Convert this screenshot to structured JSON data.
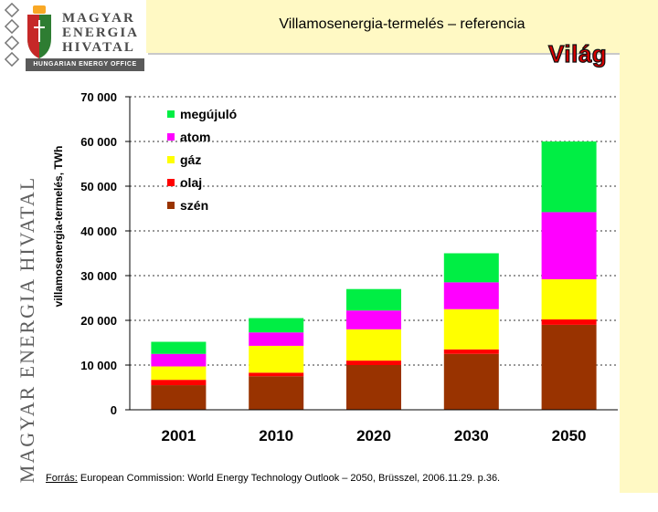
{
  "slide": {
    "title": "Villamosenergia-termelés – referencia",
    "badge": "Világ",
    "brand_vertical": "MAGYAR ENERGIA HIVATAL",
    "logo_lines": [
      "MAGYAR",
      "ENERGIA",
      "HIVATAL"
    ],
    "logo_subtitle": "HUNGARIAN ENERGY OFFICE",
    "source_label": "Forrás:",
    "source_text": " European Commission: World Energy Technology Outlook – 2050, Brüsszel, 2006.11.29. p.36."
  },
  "colors": {
    "band": "#fff9c4",
    "badge": "#d50000",
    "szen": "#993300",
    "olaj": "#ff0000",
    "gaz": "#ffff00",
    "atom": "#ff00ff",
    "megujulo": "#00ee44"
  },
  "chart_data": {
    "type": "bar",
    "stacked": true,
    "ylabel": "villamosenergia-termelés, TWh",
    "ylim": [
      0,
      70000
    ],
    "yticks": [
      "0",
      "10 000",
      "20 000",
      "30 000",
      "40 000",
      "50 000",
      "60 000",
      "70 000"
    ],
    "grid": true,
    "legend_position": "top-left",
    "categories": [
      "2001",
      "2010",
      "2020",
      "2030",
      "2050"
    ],
    "series": [
      {
        "name": "szén",
        "color": "#993300",
        "values": [
          5500,
          7500,
          10000,
          12500,
          19000
        ]
      },
      {
        "name": "olaj",
        "color": "#ff0000",
        "values": [
          1200,
          800,
          1000,
          1000,
          1200
        ]
      },
      {
        "name": "gáz",
        "color": "#ffff00",
        "values": [
          3000,
          6000,
          7000,
          9000,
          9000
        ]
      },
      {
        "name": "atom",
        "color": "#ff00ff",
        "values": [
          2800,
          3000,
          4200,
          6000,
          15000
        ]
      },
      {
        "name": "megújuló",
        "color": "#00ee44",
        "values": [
          2700,
          3200,
          4800,
          6500,
          15800
        ]
      }
    ],
    "legend_order": [
      "megújuló",
      "atom",
      "gáz",
      "olaj",
      "szén"
    ]
  }
}
